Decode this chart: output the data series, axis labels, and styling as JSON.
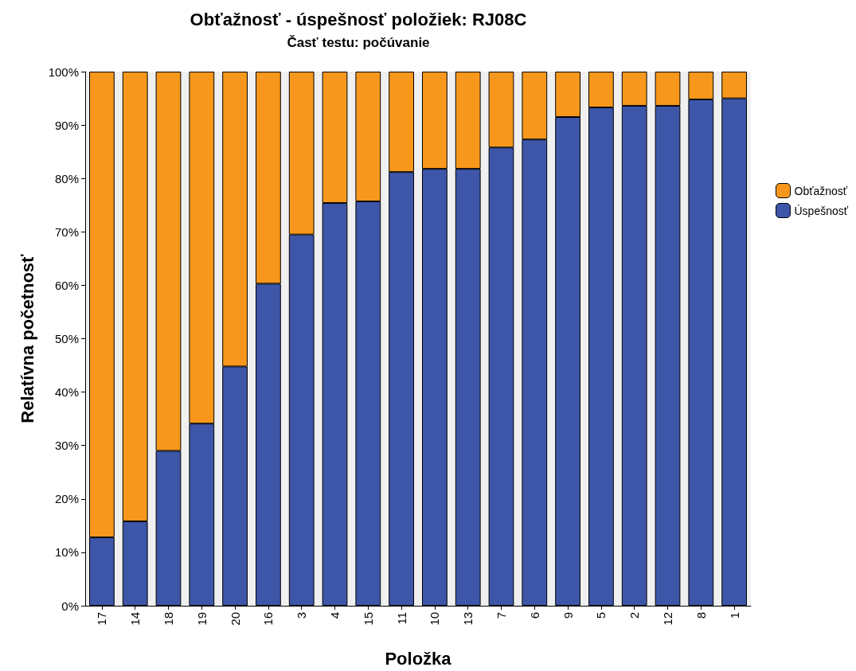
{
  "chart_data": {
    "type": "bar",
    "title": "Obťažnosť - úspešnosť položiek: RJ08C",
    "subtitle": "Časť testu: počúvanie",
    "xlabel": "Položka",
    "ylabel": "Relatívna početnosť",
    "stacked": true,
    "legend": "right",
    "grid": false,
    "categories": [
      "17",
      "14",
      "18",
      "19",
      "20",
      "16",
      "3",
      "4",
      "15",
      "11",
      "10",
      "13",
      "7",
      "6",
      "9",
      "5",
      "2",
      "12",
      "8",
      "1"
    ],
    "series": [
      {
        "name": "Úspešnosť",
        "color": "#3d56a8",
        "values": [
          12.8,
          15.8,
          29.0,
          34.1,
          44.8,
          60.3,
          69.5,
          75.4,
          75.7,
          81.2,
          81.8,
          81.8,
          85.8,
          87.3,
          91.5,
          93.3,
          93.6,
          93.6,
          94.8,
          95.0
        ]
      },
      {
        "name": "Obťažnosť",
        "color": "#f7981d",
        "values": [
          87.2,
          84.2,
          71.0,
          65.9,
          55.2,
          39.7,
          30.5,
          24.6,
          24.3,
          18.8,
          18.2,
          18.2,
          14.2,
          12.7,
          8.5,
          6.7,
          6.4,
          6.4,
          5.2,
          5.0
        ]
      }
    ],
    "ylim": [
      0,
      100
    ],
    "yticks": [
      {
        "value": 0,
        "label": "0%"
      },
      {
        "value": 10,
        "label": "10%"
      },
      {
        "value": 20,
        "label": "20%"
      },
      {
        "value": 30,
        "label": "30%"
      },
      {
        "value": 40,
        "label": "40%"
      },
      {
        "value": 50,
        "label": "50%"
      },
      {
        "value": 60,
        "label": "60%"
      },
      {
        "value": 70,
        "label": "70%"
      },
      {
        "value": 80,
        "label": "80%"
      },
      {
        "value": 90,
        "label": "90%"
      },
      {
        "value": 100,
        "label": "100%"
      }
    ]
  }
}
